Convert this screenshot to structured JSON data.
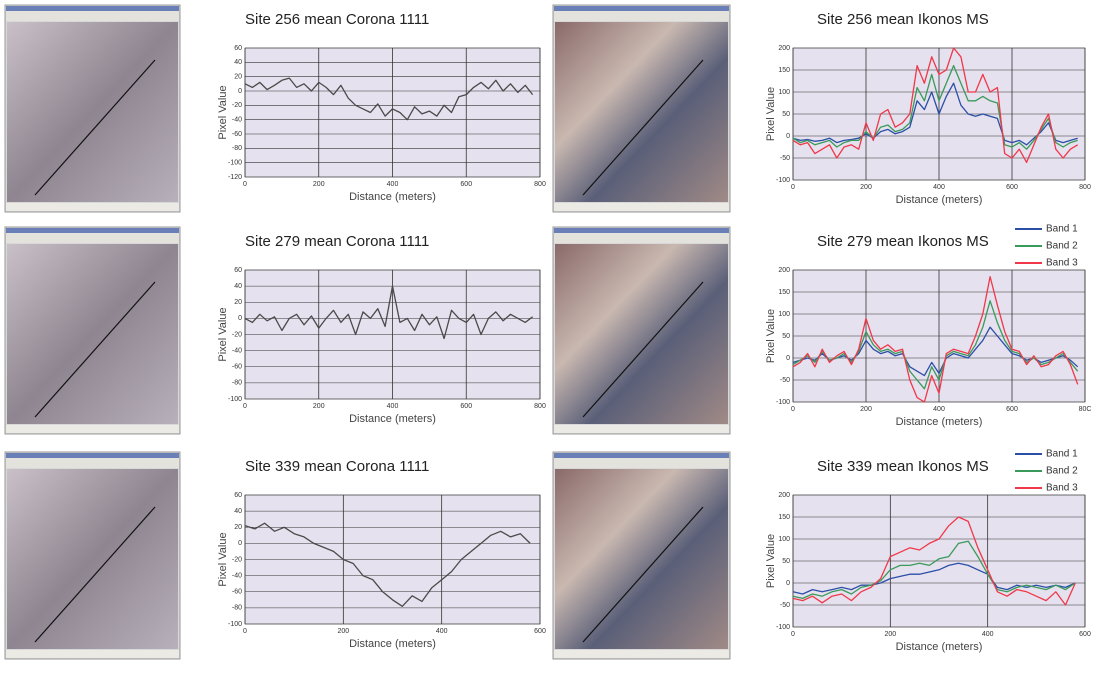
{
  "chart_data": [
    {
      "type": "line",
      "title": "Site 256 mean Corona 1111",
      "x_label": "Distance (meters)",
      "y_label": "Pixel Value",
      "x": [
        0,
        20,
        40,
        60,
        80,
        100,
        120,
        140,
        160,
        180,
        200,
        220,
        240,
        260,
        280,
        300,
        320,
        340,
        360,
        380,
        400,
        420,
        440,
        460,
        480,
        500,
        520,
        540,
        560,
        580,
        600,
        620,
        640,
        660,
        680,
        700,
        720,
        740,
        760,
        780
      ],
      "series": [
        {
          "color": "#4a4a4a",
          "values": [
            10,
            5,
            12,
            2,
            8,
            15,
            18,
            5,
            10,
            0,
            12,
            5,
            -5,
            8,
            -10,
            -20,
            -25,
            -30,
            -18,
            -35,
            -25,
            -30,
            -40,
            -22,
            -32,
            -28,
            -35,
            -20,
            -30,
            -8,
            -5,
            5,
            12,
            3,
            15,
            0,
            10,
            -2,
            8,
            -5
          ]
        }
      ],
      "xlim": [
        0,
        800
      ],
      "ylim": [
        -120,
        60
      ],
      "xticks": [
        0,
        200,
        400,
        600,
        800
      ],
      "yticks": [
        -120,
        -100,
        -80,
        -60,
        -40,
        -20,
        0,
        20,
        40,
        60
      ],
      "grid": true
    },
    {
      "type": "line",
      "title": "Site 256 mean Ikonos MS",
      "x_label": "Distance (meters)",
      "y_label": "Pixel Value",
      "x": [
        0,
        20,
        40,
        60,
        80,
        100,
        120,
        140,
        160,
        180,
        200,
        220,
        240,
        260,
        280,
        300,
        320,
        340,
        360,
        380,
        400,
        420,
        440,
        460,
        480,
        500,
        520,
        540,
        560,
        580,
        600,
        620,
        640,
        660,
        680,
        700,
        720,
        740,
        760,
        780
      ],
      "series": [
        {
          "color": "#2b4fa8",
          "values": [
            -5,
            -10,
            -8,
            -12,
            -10,
            -5,
            -15,
            -10,
            -8,
            -5,
            5,
            -5,
            10,
            15,
            5,
            10,
            20,
            80,
            60,
            100,
            50,
            90,
            120,
            70,
            50,
            45,
            50,
            45,
            40,
            -10,
            -15,
            -10,
            -20,
            -5,
            10,
            30,
            -10,
            -15,
            -10,
            -5
          ]
        },
        {
          "color": "#3a9a5a",
          "values": [
            -5,
            -15,
            -10,
            -20,
            -15,
            -10,
            -25,
            -15,
            -10,
            -10,
            10,
            -5,
            20,
            25,
            10,
            15,
            30,
            110,
            80,
            140,
            80,
            120,
            160,
            120,
            80,
            80,
            90,
            80,
            75,
            -20,
            -25,
            -15,
            -30,
            -10,
            15,
            40,
            -15,
            -25,
            -15,
            -10
          ]
        },
        {
          "color": "#f0384a",
          "values": [
            -10,
            -20,
            -15,
            -40,
            -30,
            -20,
            -50,
            -25,
            -20,
            -30,
            30,
            -10,
            50,
            60,
            20,
            30,
            50,
            160,
            120,
            180,
            140,
            150,
            200,
            180,
            100,
            100,
            140,
            100,
            110,
            -40,
            -50,
            -30,
            -60,
            -20,
            20,
            50,
            -30,
            -50,
            -30,
            -20
          ]
        }
      ],
      "xlim": [
        0,
        800
      ],
      "ylim": [
        -100,
        200
      ],
      "xticks": [
        0,
        200,
        400,
        600,
        800
      ],
      "yticks": [
        -100,
        -50,
        0,
        50,
        100,
        150,
        200
      ],
      "grid": true
    },
    {
      "type": "line",
      "title": "Site 279 mean Corona 1111",
      "x_label": "Distance (meters)",
      "y_label": "Pixel Value",
      "x": [
        0,
        20,
        40,
        60,
        80,
        100,
        120,
        140,
        160,
        180,
        200,
        220,
        240,
        260,
        280,
        300,
        320,
        340,
        360,
        380,
        400,
        420,
        440,
        460,
        480,
        500,
        520,
        540,
        560,
        580,
        600,
        620,
        640,
        660,
        680,
        700,
        720,
        740,
        760,
        780
      ],
      "series": [
        {
          "color": "#4a4a4a",
          "values": [
            0,
            -5,
            5,
            -3,
            2,
            -15,
            0,
            5,
            -8,
            3,
            -12,
            0,
            10,
            -5,
            5,
            -20,
            8,
            0,
            12,
            -10,
            40,
            -5,
            0,
            -15,
            5,
            -8,
            2,
            -25,
            10,
            0,
            -5,
            5,
            -20,
            0,
            8,
            -3,
            5,
            0,
            -5,
            2
          ]
        }
      ],
      "xlim": [
        0,
        800
      ],
      "ylim": [
        -100,
        60
      ],
      "xticks": [
        0,
        200,
        400,
        600,
        800
      ],
      "yticks": [
        -100,
        -80,
        -60,
        -40,
        -20,
        0,
        20,
        40,
        60
      ],
      "grid": true
    },
    {
      "type": "line",
      "title": "Site 279 mean Ikonos MS",
      "x_label": "Distance (meters)",
      "y_label": "Pixel Value",
      "x": [
        0,
        20,
        40,
        60,
        80,
        100,
        120,
        140,
        160,
        180,
        200,
        220,
        240,
        260,
        280,
        300,
        320,
        340,
        360,
        380,
        400,
        420,
        440,
        460,
        480,
        500,
        520,
        540,
        560,
        580,
        600,
        620,
        640,
        660,
        680,
        700,
        720,
        740,
        760,
        780
      ],
      "series": [
        {
          "name": "Band 1",
          "color": "#2b4fa8",
          "values": [
            -10,
            -5,
            0,
            -5,
            10,
            -5,
            0,
            5,
            -5,
            10,
            40,
            20,
            10,
            15,
            5,
            10,
            -20,
            -30,
            -40,
            -10,
            -35,
            0,
            10,
            5,
            0,
            20,
            40,
            70,
            50,
            30,
            10,
            5,
            -5,
            0,
            -10,
            -5,
            0,
            5,
            -5,
            -20
          ]
        },
        {
          "name": "Band 2",
          "color": "#3a9a5a",
          "values": [
            -15,
            -5,
            5,
            -10,
            15,
            -5,
            0,
            10,
            -10,
            15,
            60,
            30,
            15,
            20,
            10,
            15,
            -30,
            -50,
            -70,
            -20,
            -50,
            5,
            15,
            10,
            5,
            30,
            70,
            130,
            80,
            40,
            15,
            10,
            -10,
            0,
            -15,
            -10,
            0,
            10,
            -10,
            -30
          ]
        },
        {
          "name": "Band 3",
          "color": "#f0384a",
          "values": [
            -20,
            -10,
            10,
            -20,
            20,
            -10,
            5,
            15,
            -15,
            20,
            90,
            40,
            20,
            30,
            15,
            20,
            -50,
            -90,
            -100,
            -40,
            -80,
            10,
            20,
            15,
            10,
            50,
            100,
            185,
            120,
            60,
            20,
            15,
            -15,
            5,
            -20,
            -15,
            5,
            15,
            -15,
            -60
          ]
        }
      ],
      "xlim": [
        0,
        800
      ],
      "ylim": [
        -100,
        200
      ],
      "xticks": [
        0,
        200,
        400,
        600,
        {
          "value": 800,
          "label": "80C"
        }
      ],
      "yticks": [
        -100,
        -50,
        0,
        50,
        100,
        150,
        200
      ],
      "grid": true,
      "legend": "outside-top-right"
    },
    {
      "type": "line",
      "title": "Site 339 mean Corona 1111",
      "x_label": "Distance (meters)",
      "y_label": "Pixel Value",
      "x": [
        0,
        20,
        40,
        60,
        80,
        100,
        120,
        140,
        160,
        180,
        200,
        220,
        240,
        260,
        280,
        300,
        320,
        340,
        360,
        380,
        400,
        420,
        440,
        460,
        480,
        500,
        520,
        540,
        560,
        580
      ],
      "series": [
        {
          "color": "#4a4a4a",
          "values": [
            22,
            18,
            25,
            15,
            20,
            12,
            8,
            0,
            -5,
            -10,
            -20,
            -25,
            -40,
            -45,
            -60,
            -70,
            -78,
            -65,
            -72,
            -55,
            -45,
            -35,
            -20,
            -10,
            0,
            10,
            15,
            8,
            12,
            0
          ]
        }
      ],
      "xlim": [
        0,
        600
      ],
      "ylim": [
        -100,
        60
      ],
      "xticks": [
        0,
        200,
        400,
        600
      ],
      "yticks": [
        -100,
        -80,
        -60,
        -40,
        -20,
        0,
        20,
        40,
        60
      ],
      "grid": true
    },
    {
      "type": "line",
      "title": "Site 339 mean Ikonos MS",
      "x_label": "Distance (meters)",
      "y_label": "Pixel Value",
      "x": [
        0,
        20,
        40,
        60,
        80,
        100,
        120,
        140,
        160,
        180,
        200,
        220,
        240,
        260,
        280,
        300,
        320,
        340,
        360,
        380,
        400,
        420,
        440,
        460,
        480,
        500,
        520,
        540,
        560,
        580
      ],
      "series": [
        {
          "name": "Band 1",
          "color": "#2b4fa8",
          "values": [
            -20,
            -25,
            -15,
            -20,
            -15,
            -10,
            -15,
            -5,
            -5,
            0,
            10,
            15,
            20,
            20,
            25,
            30,
            40,
            45,
            40,
            30,
            20,
            -10,
            -15,
            -5,
            -10,
            -5,
            -10,
            -5,
            -10,
            0
          ]
        },
        {
          "name": "Band 2",
          "color": "#3a9a5a",
          "values": [
            -30,
            -35,
            -25,
            -30,
            -20,
            -15,
            -25,
            -10,
            -5,
            5,
            30,
            40,
            40,
            45,
            40,
            55,
            60,
            90,
            95,
            60,
            20,
            -15,
            -20,
            -10,
            -5,
            -10,
            -15,
            -5,
            -15,
            0
          ]
        },
        {
          "name": "Band 3",
          "color": "#f0384a",
          "values": [
            -35,
            -40,
            -30,
            -45,
            -30,
            -25,
            -40,
            -20,
            -10,
            10,
            60,
            70,
            80,
            75,
            90,
            100,
            130,
            150,
            140,
            80,
            30,
            -20,
            -30,
            -15,
            -20,
            -30,
            -40,
            -20,
            -50,
            0
          ]
        }
      ],
      "xlim": [
        0,
        600
      ],
      "ylim": [
        -100,
        200
      ],
      "xticks": [
        0,
        200,
        400,
        600
      ],
      "yticks": [
        -100,
        -50,
        0,
        50,
        100,
        150,
        200
      ],
      "grid": true,
      "legend": "outside-top-right"
    }
  ]
}
